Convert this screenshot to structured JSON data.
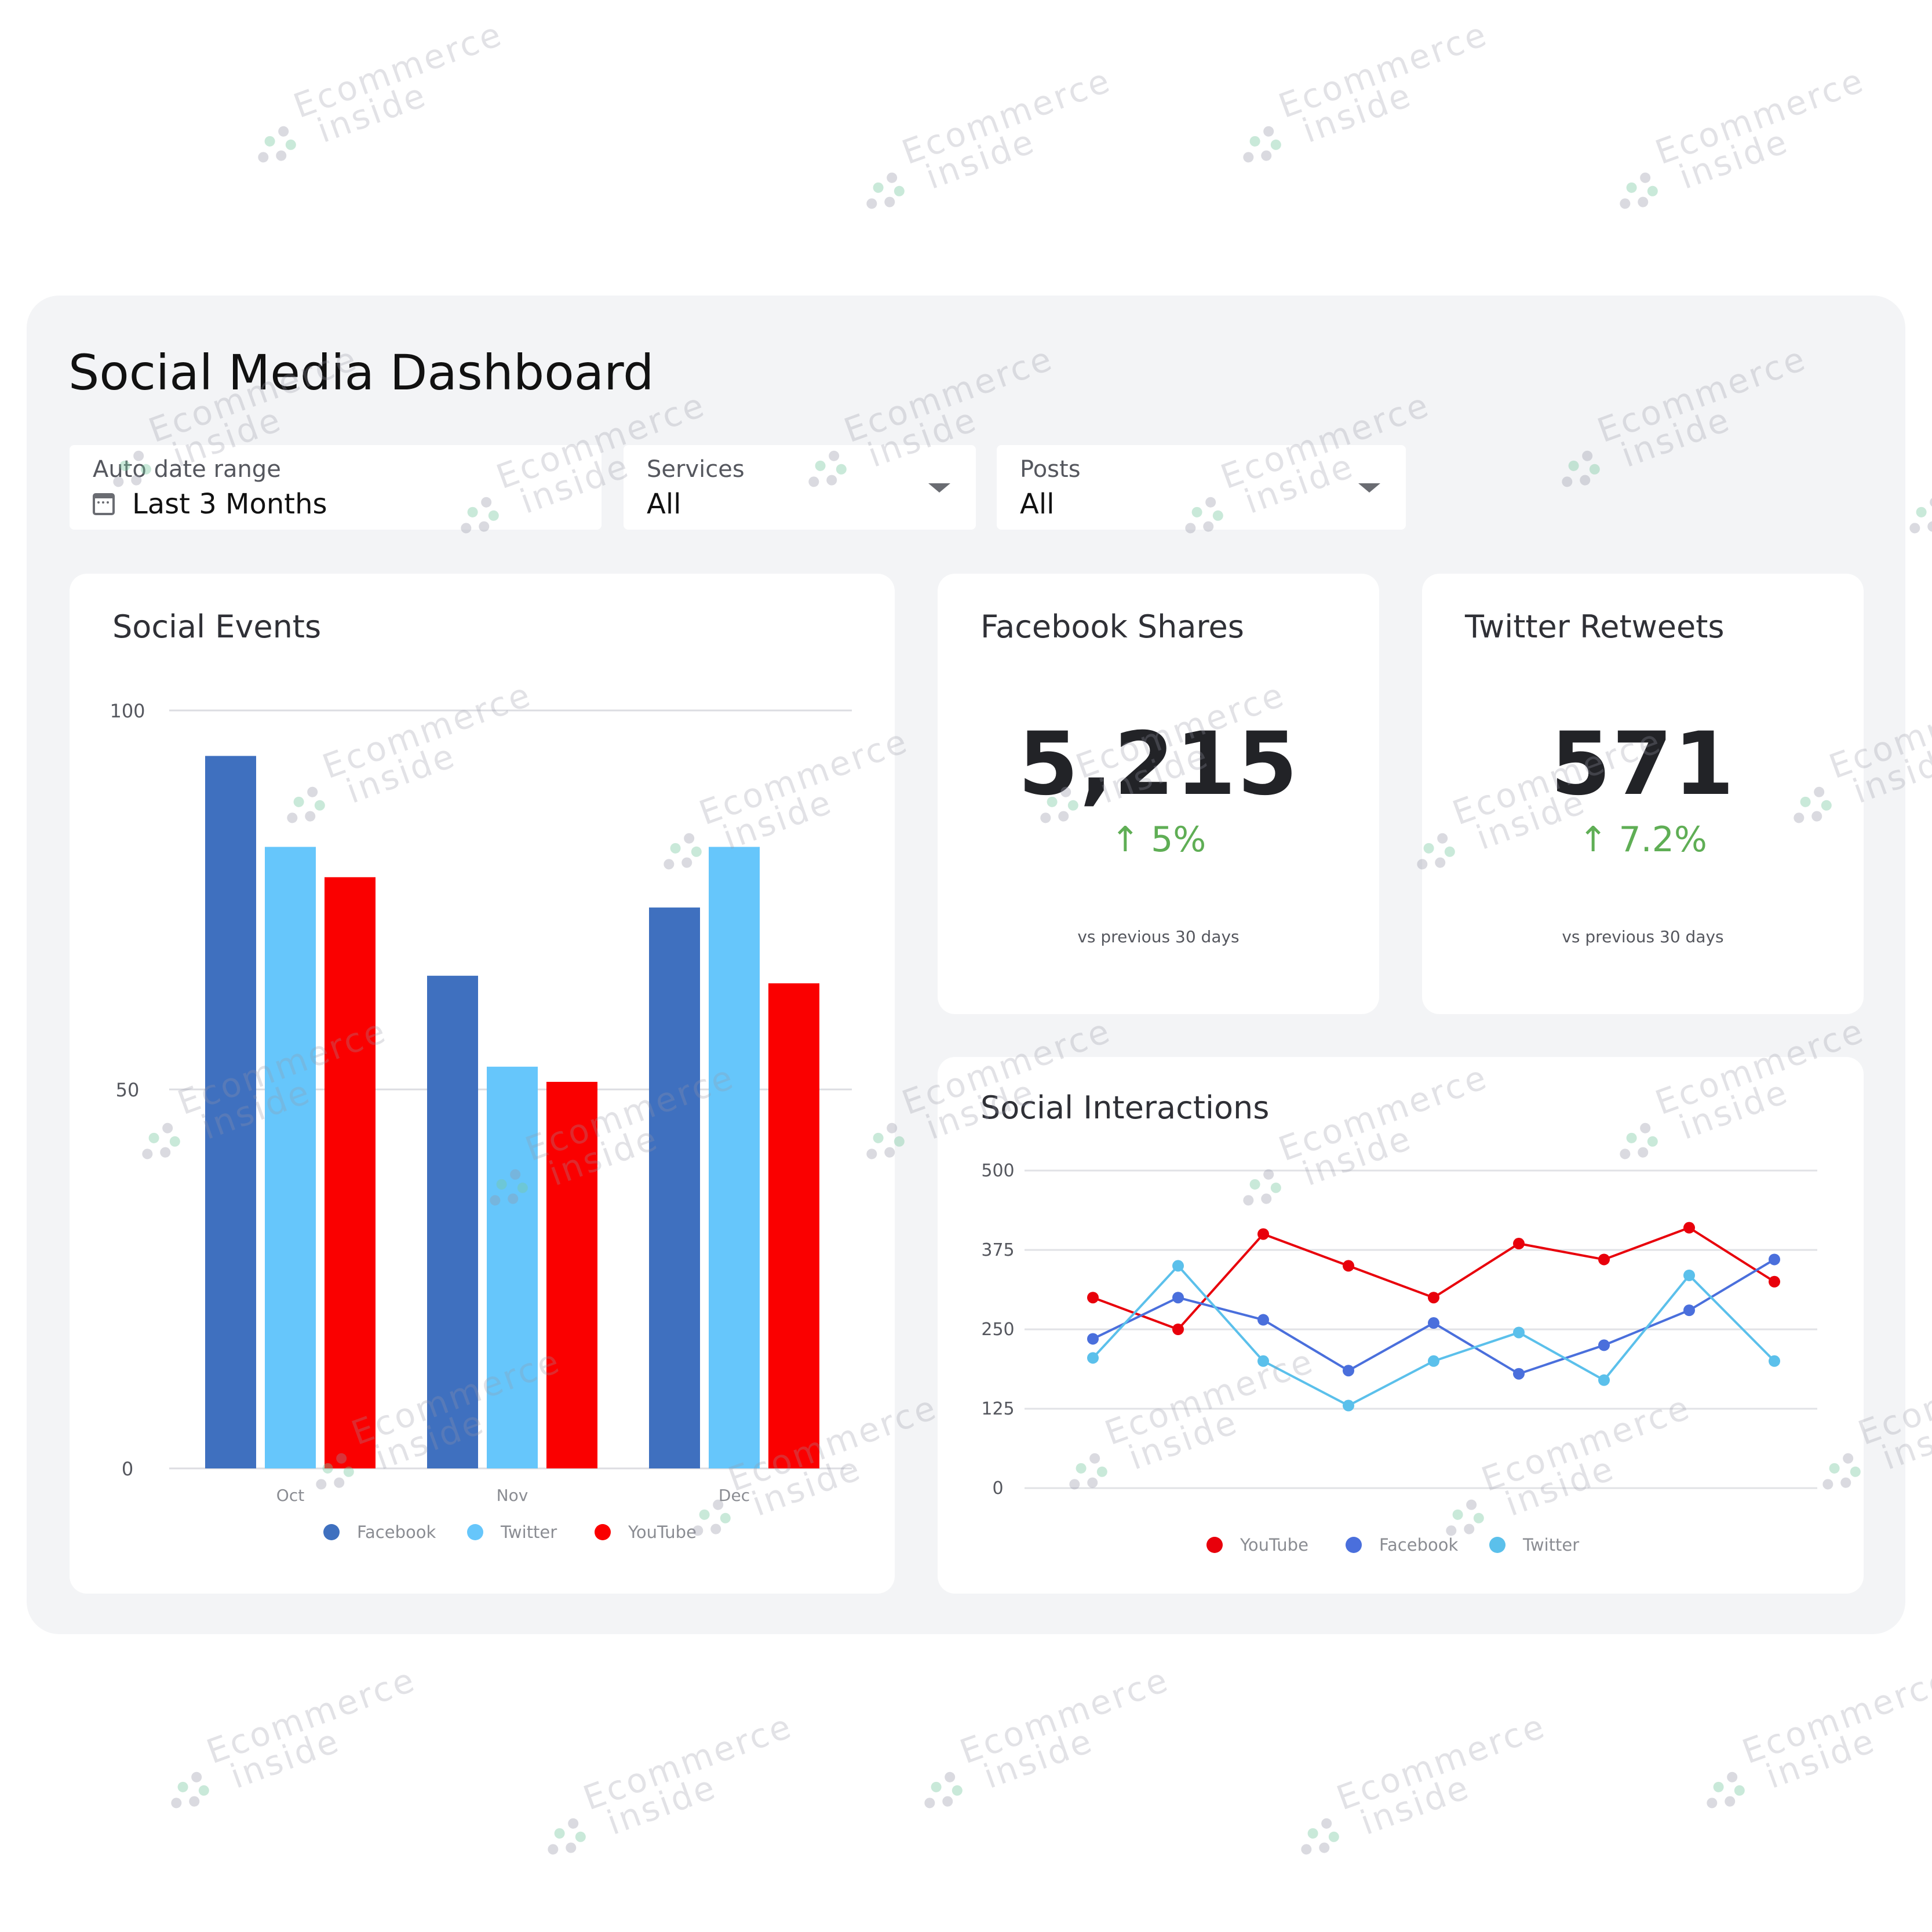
{
  "page": {
    "title": "Social Media Dashboard",
    "watermark": [
      "Ecommerce",
      "inside"
    ]
  },
  "filters": {
    "date": {
      "label": "Auto date range",
      "value": "Last 3 Months",
      "icon": "calendar-icon"
    },
    "services": {
      "label": "Services",
      "value": "All",
      "icon": "chevron-down-icon"
    },
    "posts": {
      "label": "Posts",
      "value": "All",
      "icon": "chevron-down-icon"
    }
  },
  "kpis": {
    "facebook_shares": {
      "title": "Facebook Shares",
      "value": "5,215",
      "change": "↑ 5%",
      "caption": "vs previous 30 days",
      "change_color": "#5fae55"
    },
    "twitter_retweets": {
      "title": "Twitter Retweets",
      "value": "571",
      "change": "↑ 7.2%",
      "caption": "vs previous 30 days",
      "change_color": "#5fae55"
    }
  },
  "colors": {
    "facebook": "#3f70bf",
    "twitter": "#66c6fb",
    "youtube": "#fa0000",
    "interaction_facebook": "#4a6fdc",
    "interaction_twitter": "#5bc0eb",
    "interaction_youtube": "#e8000b"
  },
  "chart_data": [
    {
      "type": "bar",
      "title": "Social Events",
      "categories": [
        "Oct",
        "Nov",
        "Dec"
      ],
      "series": [
        {
          "name": "Facebook",
          "values": [
            94,
            65,
            74
          ]
        },
        {
          "name": "Twitter",
          "values": [
            82,
            53,
            82
          ]
        },
        {
          "name": "YouTube",
          "values": [
            78,
            51,
            64
          ]
        }
      ],
      "ylim": [
        0,
        100
      ],
      "yticks": [
        "100",
        "50",
        "0"
      ],
      "grid": true,
      "legend": "bottom"
    },
    {
      "type": "line",
      "title": "Social Interactions",
      "x": [
        1,
        2,
        3,
        4,
        5,
        6,
        7,
        8,
        9
      ],
      "series": [
        {
          "name": "YouTube",
          "values": [
            300,
            250,
            400,
            350,
            300,
            385,
            360,
            410,
            325
          ]
        },
        {
          "name": "Facebook",
          "values": [
            235,
            300,
            265,
            185,
            260,
            180,
            225,
            280,
            360
          ]
        },
        {
          "name": "Twitter",
          "values": [
            205,
            350,
            200,
            130,
            200,
            245,
            170,
            335,
            200
          ]
        }
      ],
      "ylim": [
        0,
        500
      ],
      "yticks": [
        "500",
        "375",
        "250",
        "125",
        "0"
      ],
      "grid": true,
      "legend": "bottom"
    }
  ]
}
